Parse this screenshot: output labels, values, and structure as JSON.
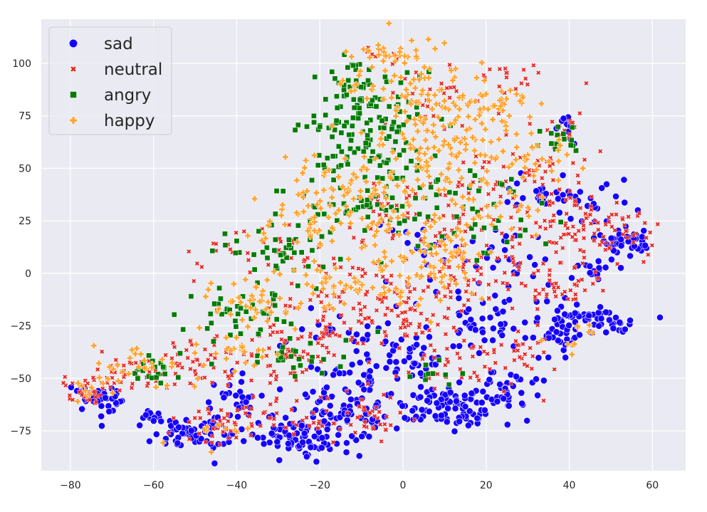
{
  "chart_data": {
    "type": "scatter",
    "title": "",
    "xlabel": "",
    "ylabel": "",
    "xlim": [
      -87,
      68
    ],
    "ylim": [
      -94,
      121
    ],
    "x_ticks": [
      -80,
      -60,
      -40,
      -20,
      0,
      20,
      40,
      60
    ],
    "y_ticks": [
      -75,
      -50,
      -25,
      0,
      25,
      50,
      75,
      100
    ],
    "grid": true,
    "background": "#eaeaf2",
    "legend_position": "top-left",
    "series": [
      {
        "name": "sad",
        "color": "#1500ff",
        "marker": "circle",
        "regions": [
          {
            "cx": -74,
            "cy": -61,
            "sx": 3,
            "sy": 4,
            "n": 35
          },
          {
            "cx": -60,
            "cy": -68,
            "sx": 2,
            "sy": 2,
            "n": 12
          },
          {
            "cx": -50,
            "cy": -76,
            "sx": 5,
            "sy": 4,
            "n": 60
          },
          {
            "cx": -40,
            "cy": -62,
            "sx": 4,
            "sy": 5,
            "n": 30
          },
          {
            "cx": -25,
            "cy": -78,
            "sx": 6,
            "sy": 4,
            "n": 70
          },
          {
            "cx": -14,
            "cy": -65,
            "sx": 6,
            "sy": 8,
            "n": 90
          },
          {
            "cx": -10,
            "cy": -48,
            "sx": 4,
            "sy": 4,
            "n": 25
          },
          {
            "cx": 2,
            "cy": -42,
            "sx": 3,
            "sy": 5,
            "n": 28
          },
          {
            "cx": 10,
            "cy": -62,
            "sx": 5,
            "sy": 4,
            "n": 45
          },
          {
            "cx": 15,
            "cy": -68,
            "sx": 5,
            "sy": 4,
            "n": 45
          },
          {
            "cx": 24,
            "cy": -55,
            "sx": 4,
            "sy": 5,
            "n": 40
          },
          {
            "cx": 20,
            "cy": -25,
            "sx": 8,
            "sy": 6,
            "n": 45
          },
          {
            "cx": 38,
            "cy": -28,
            "sx": 3,
            "sy": 6,
            "n": 40
          },
          {
            "cx": 48,
            "cy": -22,
            "sx": 6,
            "sy": 4,
            "n": 45
          },
          {
            "cx": 45,
            "cy": 2,
            "sx": 3,
            "sy": 3,
            "n": 12
          },
          {
            "cx": 52,
            "cy": 15,
            "sx": 4,
            "sy": 4,
            "n": 25
          },
          {
            "cx": 56,
            "cy": 15,
            "sx": 2,
            "sy": 4,
            "n": 15
          },
          {
            "cx": 45,
            "cy": 35,
            "sx": 7,
            "sy": 5,
            "n": 30
          },
          {
            "cx": 40,
            "cy": 70,
            "sx": 2,
            "sy": 4,
            "n": 12
          },
          {
            "cx": 32,
            "cy": 40,
            "sx": 4,
            "sy": 6,
            "n": 15
          },
          {
            "cx": 5,
            "cy": 10,
            "sx": 6,
            "sy": 10,
            "n": 20
          },
          {
            "cx": -10,
            "cy": -25,
            "sx": 10,
            "sy": 6,
            "n": 25
          },
          {
            "cx": 25,
            "cy": 5,
            "sx": 8,
            "sy": 10,
            "n": 30
          }
        ]
      },
      {
        "name": "neutral",
        "color": "#e8221c",
        "marker": "x",
        "regions": [
          {
            "cx": -75,
            "cy": -56,
            "sx": 4,
            "sy": 4,
            "n": 40
          },
          {
            "cx": -65,
            "cy": -48,
            "sx": 5,
            "sy": 5,
            "n": 40
          },
          {
            "cx": -50,
            "cy": -42,
            "sx": 5,
            "sy": 6,
            "n": 40
          },
          {
            "cx": -45,
            "cy": -72,
            "sx": 5,
            "sy": 5,
            "n": 35
          },
          {
            "cx": -30,
            "cy": -40,
            "sx": 6,
            "sy": 7,
            "n": 55
          },
          {
            "cx": -20,
            "cy": -30,
            "sx": 6,
            "sy": 8,
            "n": 45
          },
          {
            "cx": -10,
            "cy": -10,
            "sx": 8,
            "sy": 12,
            "n": 70
          },
          {
            "cx": 5,
            "cy": -20,
            "sx": 6,
            "sy": 10,
            "n": 50
          },
          {
            "cx": 15,
            "cy": -40,
            "sx": 7,
            "sy": 8,
            "n": 40
          },
          {
            "cx": 20,
            "cy": 0,
            "sx": 10,
            "sy": 10,
            "n": 70
          },
          {
            "cx": 15,
            "cy": 30,
            "sx": 10,
            "sy": 12,
            "n": 60
          },
          {
            "cx": 30,
            "cy": 50,
            "sx": 8,
            "sy": 10,
            "n": 40
          },
          {
            "cx": 36,
            "cy": 25,
            "sx": 7,
            "sy": 8,
            "n": 45
          },
          {
            "cx": 45,
            "cy": 20,
            "sx": 6,
            "sy": 8,
            "n": 35
          },
          {
            "cx": 55,
            "cy": 20,
            "sx": 4,
            "sy": 6,
            "n": 25
          },
          {
            "cx": 40,
            "cy": -5,
            "sx": 6,
            "sy": 5,
            "n": 30
          },
          {
            "cx": 30,
            "cy": -40,
            "sx": 4,
            "sy": 6,
            "n": 20
          },
          {
            "cx": 10,
            "cy": 85,
            "sx": 10,
            "sy": 8,
            "n": 40
          },
          {
            "cx": 25,
            "cy": 95,
            "sx": 3,
            "sy": 4,
            "n": 15
          },
          {
            "cx": 38,
            "cy": 68,
            "sx": 3,
            "sy": 4,
            "n": 15
          },
          {
            "cx": -5,
            "cy": 105,
            "sx": 3,
            "sy": 2,
            "n": 8
          },
          {
            "cx": -30,
            "cy": -68,
            "sx": 8,
            "sy": 6,
            "n": 40
          },
          {
            "cx": -10,
            "cy": -68,
            "sx": 6,
            "sy": 6,
            "n": 40
          },
          {
            "cx": -35,
            "cy": 10,
            "sx": 8,
            "sy": 8,
            "n": 35
          },
          {
            "cx": -3,
            "cy": 30,
            "sx": 8,
            "sy": 8,
            "n": 35
          }
        ]
      },
      {
        "name": "angry",
        "color": "#047c04",
        "marker": "square",
        "regions": [
          {
            "cx": -5,
            "cy": 70,
            "sx": 7,
            "sy": 12,
            "n": 80
          },
          {
            "cx": -12,
            "cy": 92,
            "sx": 4,
            "sy": 6,
            "n": 35
          },
          {
            "cx": -8,
            "cy": 55,
            "sx": 6,
            "sy": 5,
            "n": 30
          },
          {
            "cx": -15,
            "cy": 30,
            "sx": 8,
            "sy": 6,
            "n": 45
          },
          {
            "cx": -30,
            "cy": 10,
            "sx": 8,
            "sy": 8,
            "n": 40
          },
          {
            "cx": -40,
            "cy": -20,
            "sx": 6,
            "sy": 6,
            "n": 40
          },
          {
            "cx": -25,
            "cy": -40,
            "sx": 6,
            "sy": 6,
            "n": 25
          },
          {
            "cx": -60,
            "cy": -45,
            "sx": 4,
            "sy": 4,
            "n": 20
          },
          {
            "cx": 10,
            "cy": 40,
            "sx": 8,
            "sy": 8,
            "n": 30
          },
          {
            "cx": 20,
            "cy": 20,
            "sx": 8,
            "sy": 8,
            "n": 25
          },
          {
            "cx": 38,
            "cy": 65,
            "sx": 3,
            "sy": 4,
            "n": 15
          },
          {
            "cx": 10,
            "cy": -45,
            "sx": 4,
            "sy": 4,
            "n": 10
          },
          {
            "cx": -20,
            "cy": 70,
            "sx": 4,
            "sy": 4,
            "n": 15
          }
        ]
      },
      {
        "name": "happy",
        "color": "#ffa22a",
        "marker": "plus",
        "regions": [
          {
            "cx": 5,
            "cy": 85,
            "sx": 8,
            "sy": 12,
            "n": 90
          },
          {
            "cx": -5,
            "cy": 100,
            "sx": 6,
            "sy": 6,
            "n": 35
          },
          {
            "cx": 20,
            "cy": 75,
            "sx": 8,
            "sy": 10,
            "n": 55
          },
          {
            "cx": 10,
            "cy": 55,
            "sx": 10,
            "sy": 8,
            "n": 60
          },
          {
            "cx": -5,
            "cy": 40,
            "sx": 8,
            "sy": 8,
            "n": 50
          },
          {
            "cx": -20,
            "cy": 45,
            "sx": 5,
            "sy": 6,
            "n": 25
          },
          {
            "cx": -25,
            "cy": 25,
            "sx": 6,
            "sy": 6,
            "n": 40
          },
          {
            "cx": 5,
            "cy": 20,
            "sx": 8,
            "sy": 8,
            "n": 50
          },
          {
            "cx": 5,
            "cy": 0,
            "sx": 8,
            "sy": 8,
            "n": 60
          },
          {
            "cx": -15,
            "cy": -5,
            "sx": 8,
            "sy": 8,
            "n": 45
          },
          {
            "cx": -35,
            "cy": -15,
            "sx": 6,
            "sy": 6,
            "n": 40
          },
          {
            "cx": -40,
            "cy": -40,
            "sx": 6,
            "sy": 6,
            "n": 25
          },
          {
            "cx": -65,
            "cy": -45,
            "sx": 5,
            "sy": 5,
            "n": 25
          },
          {
            "cx": -75,
            "cy": -55,
            "sx": 3,
            "sy": 3,
            "n": 10
          },
          {
            "cx": 30,
            "cy": 55,
            "sx": 6,
            "sy": 8,
            "n": 30
          },
          {
            "cx": 25,
            "cy": 30,
            "sx": 6,
            "sy": 6,
            "n": 20
          },
          {
            "cx": -45,
            "cy": -75,
            "sx": 4,
            "sy": 3,
            "n": 10
          },
          {
            "cx": 40,
            "cy": -30,
            "sx": 4,
            "sy": 4,
            "n": 10
          }
        ]
      }
    ]
  }
}
